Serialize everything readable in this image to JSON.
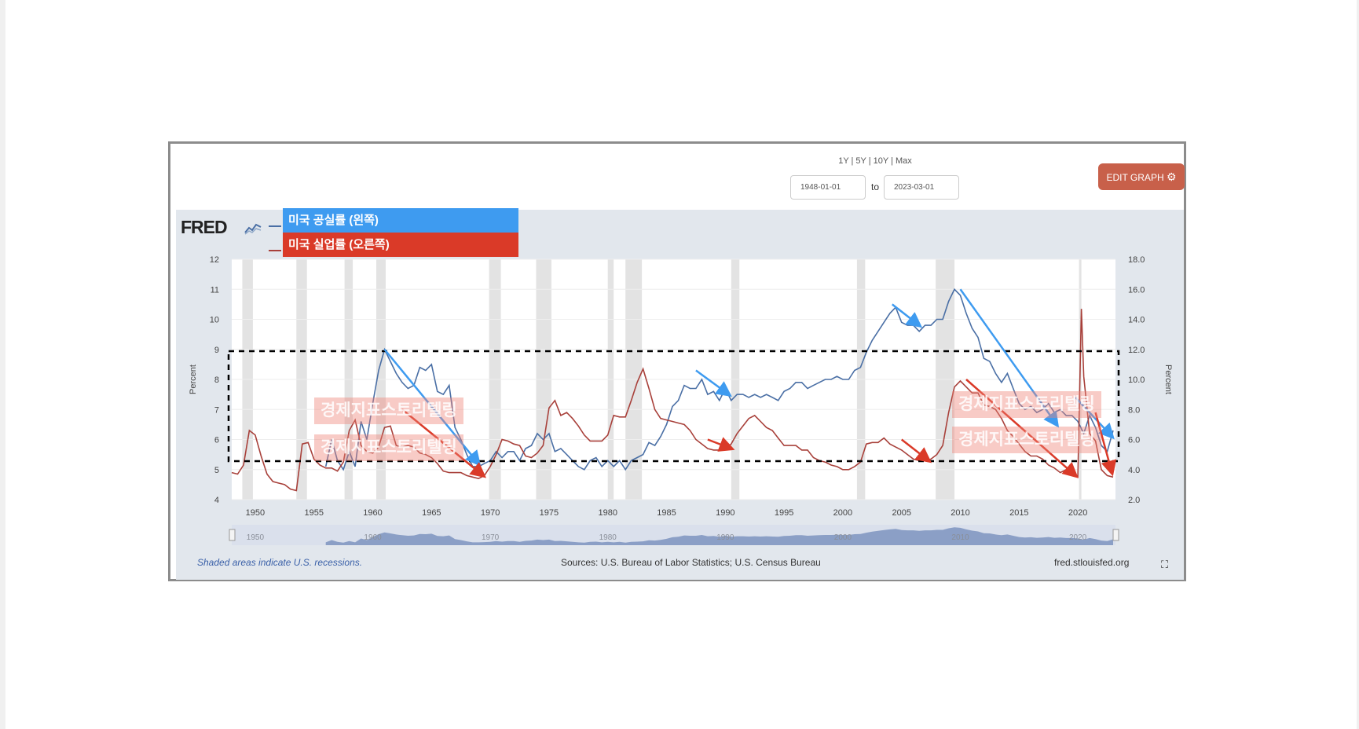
{
  "header": {
    "range_links": "1Y | 5Y | 10Y | Max",
    "start_date": "1948-01-01",
    "to_label": "to",
    "end_date": "2023-03-01",
    "edit_button": "EDIT GRAPH"
  },
  "logo": {
    "text": "FRED"
  },
  "legend": [
    {
      "label": "미국 공실률 (왼쪽)",
      "color": "#3e9bf0",
      "line_color": "#4a6fa5"
    },
    {
      "label": "미국 실업률 (오른쪽)",
      "color": "#da3a28",
      "line_color": "#a8403a"
    }
  ],
  "watermarks": [
    "경제지표스토리텔링",
    "경제지표스토리텔링"
  ],
  "footer": {
    "recession_note": "Shaded areas indicate U.S. recessions.",
    "sources": "Sources: U.S. Bureau of Labor Statistics; U.S. Census Bureau",
    "site": "fred.stlouisfed.org"
  },
  "colors": {
    "vacancy_series": "#4a6fa5",
    "unemployment_series": "#a8403a",
    "recession_shade": "#e3e3e3",
    "blue_arrow": "#3e9bf0",
    "red_arrow": "#da3a28"
  },
  "chart_data": {
    "type": "line",
    "x_ticks": [
      1950,
      1955,
      1960,
      1965,
      1970,
      1975,
      1980,
      1985,
      1990,
      1995,
      2000,
      2005,
      2010,
      2015,
      2020
    ],
    "xlim": [
      1948.0,
      2023.2
    ],
    "ylabel_left": "Percent",
    "ylabel_right": "Percent",
    "ylim_left": [
      4,
      12
    ],
    "yticks_left": [
      "4",
      "5",
      "6",
      "7",
      "8",
      "9",
      "10",
      "11",
      "12"
    ],
    "ylim_right": [
      2.0,
      18.0
    ],
    "yticks_right": [
      "2.0",
      "4.0",
      "6.0",
      "8.0",
      "10.0",
      "12.0",
      "14.0",
      "16.0",
      "18.0"
    ],
    "navigator_labels": [
      "1950",
      "1960",
      "1970",
      "1980",
      "1990",
      "2000",
      "2010",
      "2020"
    ],
    "recessions": [
      [
        1948.9,
        1949.8
      ],
      [
        1953.5,
        1954.4
      ],
      [
        1957.6,
        1958.3
      ],
      [
        1960.3,
        1961.1
      ],
      [
        1969.9,
        1970.9
      ],
      [
        1973.9,
        1975.2
      ],
      [
        1980.0,
        1980.5
      ],
      [
        1981.5,
        1982.9
      ],
      [
        1990.5,
        1991.2
      ],
      [
        2001.2,
        2001.9
      ],
      [
        2007.9,
        2009.5
      ],
      [
        2020.1,
        2020.3
      ]
    ],
    "series": [
      {
        "name": "미국 공실률 (왼쪽)",
        "axis": "left",
        "x": [
          1956.0,
          1956.5,
          1957.0,
          1957.5,
          1958.0,
          1958.5,
          1959.0,
          1959.5,
          1960.0,
          1960.5,
          1961.0,
          1961.5,
          1962.0,
          1962.5,
          1963.0,
          1963.5,
          1964.0,
          1964.5,
          1965.0,
          1965.5,
          1966.0,
          1966.5,
          1967.0,
          1967.5,
          1968.0,
          1968.5,
          1969.0,
          1969.5,
          1970.0,
          1970.5,
          1971.0,
          1971.5,
          1972.0,
          1972.5,
          1973.0,
          1973.5,
          1974.0,
          1974.5,
          1975.0,
          1975.5,
          1976.0,
          1976.5,
          1977.0,
          1977.5,
          1978.0,
          1978.5,
          1979.0,
          1979.5,
          1980.0,
          1980.5,
          1981.0,
          1981.5,
          1982.0,
          1982.5,
          1983.0,
          1983.5,
          1984.0,
          1984.5,
          1985.0,
          1985.5,
          1986.0,
          1986.5,
          1987.0,
          1987.5,
          1988.0,
          1988.5,
          1989.0,
          1989.5,
          1990.0,
          1990.5,
          1991.0,
          1991.5,
          1992.0,
          1992.5,
          1993.0,
          1993.5,
          1994.0,
          1994.5,
          1995.0,
          1995.5,
          1996.0,
          1996.5,
          1997.0,
          1997.5,
          1998.0,
          1998.5,
          1999.0,
          1999.5,
          2000.0,
          2000.5,
          2001.0,
          2001.5,
          2002.0,
          2002.5,
          2003.0,
          2003.5,
          2004.0,
          2004.5,
          2005.0,
          2005.5,
          2006.0,
          2006.5,
          2007.0,
          2007.5,
          2008.0,
          2008.5,
          2009.0,
          2009.5,
          2010.0,
          2010.5,
          2011.0,
          2011.5,
          2012.0,
          2012.5,
          2013.0,
          2013.5,
          2014.0,
          2014.5,
          2015.0,
          2015.5,
          2016.0,
          2016.5,
          2017.0,
          2017.5,
          2018.0,
          2018.5,
          2019.0,
          2019.5,
          2020.0,
          2020.5,
          2021.0,
          2021.5,
          2022.0,
          2022.5,
          2023.0
        ],
        "values": [
          5.1,
          6.0,
          5.3,
          5.0,
          5.6,
          5.1,
          6.6,
          6.0,
          7.2,
          8.3,
          9.0,
          8.6,
          8.2,
          7.9,
          7.7,
          7.8,
          8.4,
          8.3,
          8.5,
          7.6,
          7.5,
          7.8,
          6.4,
          6.0,
          5.5,
          5.1,
          5.1,
          5.2,
          5.3,
          5.6,
          5.4,
          5.6,
          5.6,
          5.3,
          5.7,
          5.8,
          6.2,
          6.0,
          6.2,
          5.6,
          5.7,
          5.5,
          5.3,
          5.1,
          5.0,
          5.3,
          5.4,
          5.1,
          5.3,
          5.1,
          5.3,
          5.0,
          5.3,
          5.4,
          5.5,
          5.9,
          5.8,
          6.1,
          6.5,
          7.1,
          7.3,
          7.8,
          7.7,
          7.7,
          8.0,
          7.5,
          7.6,
          7.3,
          7.7,
          7.3,
          7.5,
          7.5,
          7.4,
          7.5,
          7.4,
          7.5,
          7.4,
          7.3,
          7.6,
          7.7,
          7.9,
          7.9,
          7.7,
          7.8,
          7.9,
          8.0,
          8.0,
          8.1,
          8.0,
          8.0,
          8.3,
          8.4,
          8.9,
          9.3,
          9.6,
          9.9,
          10.2,
          10.4,
          9.9,
          9.8,
          9.8,
          9.6,
          9.8,
          9.8,
          10.0,
          10.0,
          10.6,
          11.0,
          10.8,
          10.2,
          9.7,
          9.4,
          8.7,
          8.6,
          8.2,
          7.9,
          8.2,
          7.7,
          7.2,
          7.0,
          7.1,
          6.9,
          7.0,
          7.2,
          6.9,
          7.0,
          6.8,
          6.8,
          6.6,
          6.2,
          6.8,
          6.4,
          5.8,
          5.6,
          6.3
        ]
      },
      {
        "name": "미국 실업률 (오른쪽)",
        "axis": "right",
        "x": [
          1948.0,
          1948.5,
          1949.0,
          1949.5,
          1950.0,
          1950.5,
          1951.0,
          1951.5,
          1952.0,
          1952.5,
          1953.0,
          1953.5,
          1954.0,
          1954.5,
          1955.0,
          1955.5,
          1956.0,
          1956.5,
          1957.0,
          1957.5,
          1958.0,
          1958.5,
          1959.0,
          1959.5,
          1960.0,
          1960.5,
          1961.0,
          1961.5,
          1962.0,
          1962.5,
          1963.0,
          1963.5,
          1964.0,
          1964.5,
          1965.0,
          1965.5,
          1966.0,
          1966.5,
          1967.0,
          1967.5,
          1968.0,
          1968.5,
          1969.0,
          1969.5,
          1970.0,
          1970.5,
          1971.0,
          1971.5,
          1972.0,
          1972.5,
          1973.0,
          1973.5,
          1974.0,
          1974.5,
          1975.0,
          1975.5,
          1976.0,
          1976.5,
          1977.0,
          1977.5,
          1978.0,
          1978.5,
          1979.0,
          1979.5,
          1980.0,
          1980.5,
          1981.0,
          1981.5,
          1982.0,
          1982.5,
          1983.0,
          1983.5,
          1984.0,
          1984.5,
          1985.0,
          1985.5,
          1986.0,
          1986.5,
          1987.0,
          1987.5,
          1988.0,
          1988.5,
          1989.0,
          1989.5,
          1990.0,
          1990.5,
          1991.0,
          1991.5,
          1992.0,
          1992.5,
          1993.0,
          1993.5,
          1994.0,
          1994.5,
          1995.0,
          1995.5,
          1996.0,
          1996.5,
          1997.0,
          1997.5,
          1998.0,
          1998.5,
          1999.0,
          1999.5,
          2000.0,
          2000.5,
          2001.0,
          2001.5,
          2002.0,
          2002.5,
          2003.0,
          2003.5,
          2004.0,
          2004.5,
          2005.0,
          2005.5,
          2006.0,
          2006.5,
          2007.0,
          2007.5,
          2008.0,
          2008.5,
          2009.0,
          2009.5,
          2010.0,
          2010.5,
          2011.0,
          2011.5,
          2012.0,
          2012.5,
          2013.0,
          2013.5,
          2014.0,
          2014.5,
          2015.0,
          2015.5,
          2016.0,
          2016.5,
          2017.0,
          2017.5,
          2018.0,
          2018.5,
          2019.0,
          2019.5,
          2020.0,
          2020.3,
          2020.5,
          2021.0,
          2021.5,
          2022.0,
          2022.5,
          2023.0
        ],
        "values": [
          3.8,
          3.7,
          4.3,
          6.6,
          6.3,
          4.9,
          3.7,
          3.2,
          3.1,
          3.0,
          2.7,
          2.6,
          5.7,
          5.8,
          4.7,
          4.3,
          4.1,
          4.1,
          3.9,
          4.5,
          6.6,
          7.3,
          5.6,
          5.2,
          5.1,
          5.5,
          6.8,
          6.9,
          5.6,
          5.5,
          5.6,
          5.5,
          5.1,
          5.0,
          4.8,
          4.4,
          3.9,
          3.8,
          3.8,
          3.8,
          3.6,
          3.5,
          3.4,
          3.6,
          4.2,
          5.0,
          6.0,
          5.9,
          5.7,
          5.6,
          4.9,
          4.8,
          5.1,
          5.6,
          8.1,
          8.6,
          7.6,
          7.8,
          7.4,
          6.9,
          6.3,
          5.9,
          5.9,
          5.9,
          6.3,
          7.6,
          7.5,
          7.5,
          8.6,
          9.8,
          10.7,
          9.4,
          8.0,
          7.4,
          7.3,
          7.2,
          7.1,
          7.0,
          6.6,
          6.0,
          5.7,
          5.4,
          5.3,
          5.3,
          5.4,
          5.7,
          6.4,
          6.9,
          7.4,
          7.6,
          7.2,
          6.8,
          6.6,
          6.1,
          5.6,
          5.6,
          5.6,
          5.3,
          5.3,
          4.8,
          4.6,
          4.5,
          4.3,
          4.2,
          4.0,
          4.0,
          4.2,
          4.5,
          5.7,
          5.8,
          5.8,
          6.1,
          5.7,
          5.5,
          5.3,
          5.0,
          4.7,
          4.6,
          4.6,
          4.7,
          5.0,
          5.6,
          7.8,
          9.5,
          9.9,
          9.5,
          9.1,
          9.1,
          8.3,
          8.2,
          8.0,
          7.4,
          6.6,
          6.2,
          5.7,
          5.2,
          4.9,
          4.9,
          4.7,
          4.3,
          4.1,
          3.8,
          4.0,
          3.6,
          3.5,
          14.7,
          10.2,
          6.4,
          5.9,
          4.0,
          3.6,
          3.5
        ]
      }
    ]
  }
}
